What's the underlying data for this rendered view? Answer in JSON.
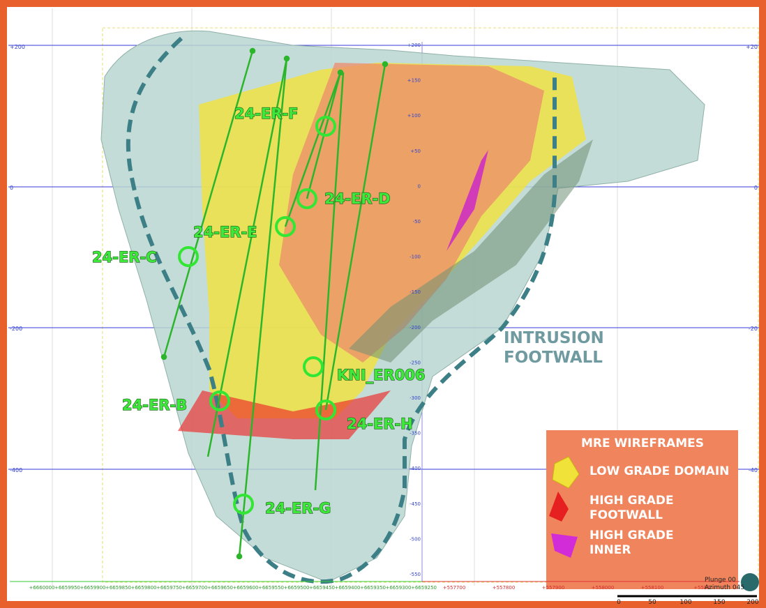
{
  "axes": {
    "left_labels": [
      "+200",
      "0",
      "-200",
      "-400"
    ],
    "right_labels": [
      "+20",
      "0",
      "-20",
      "-40"
    ],
    "center_ticks": [
      "+200",
      "+150",
      "+100",
      "+50",
      "0",
      "-50",
      "-100",
      "-150",
      "-200",
      "-250",
      "-300",
      "-350",
      "-400",
      "-450",
      "-500",
      "-550"
    ],
    "northings": [
      "+6660000",
      "+6659950",
      "+6659900",
      "+6659850",
      "+6659800",
      "+6659750",
      "+6659700",
      "+6659650",
      "+6659600",
      "+6659550",
      "+6659500",
      "+6659450",
      "+6659400",
      "+6659350",
      "+6659300",
      "+6659250"
    ],
    "eastings": [
      "+557700",
      "+557800",
      "+557900",
      "+558000",
      "+558100",
      "+5582"
    ]
  },
  "drill_holes": [
    "24-ER-F",
    "24-ER-D",
    "24-ER-E",
    "24-ER-C",
    "KNI_ER006",
    "24-ER-B",
    "24-ER-H",
    "24-ER-G"
  ],
  "annotation": [
    "INTRUSION",
    "FOOTWALL"
  ],
  "legend": {
    "title": "MRE WIREFRAMES",
    "items": [
      [
        "LOW GRADE DOMAIN"
      ],
      [
        "HIGH GRADE",
        "FOOTWALL"
      ],
      [
        "HIGH GRADE",
        "INNER"
      ]
    ]
  },
  "view": {
    "plunge": "Plunge 00",
    "azimuth": "Azimuth 045",
    "scale": [
      "0",
      "50",
      "100",
      "150",
      "200"
    ]
  }
}
